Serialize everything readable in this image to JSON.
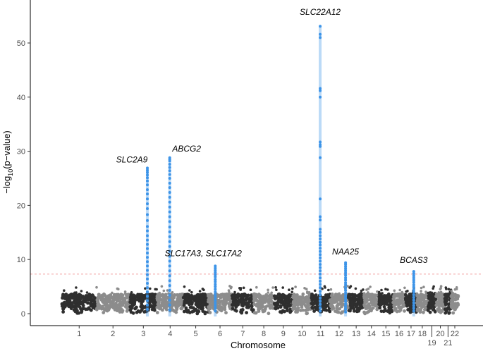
{
  "chart_data": {
    "type": "scatter",
    "subtype": "manhattan",
    "title": "",
    "xlabel": "Chromosome",
    "ylabel": {
      "prefix": "−log",
      "subscript": "10",
      "suffix": "(p−value)"
    },
    "ylim": [
      0,
      55
    ],
    "yticks": [
      0,
      10,
      20,
      30,
      40,
      50
    ],
    "grid": false,
    "significance_threshold": 7.3,
    "colors": {
      "dark": "#2f2f2f",
      "light": "#8c8c8c",
      "highlight": "#3d94e8",
      "threshold": "#f4a3a3"
    },
    "chromosomes": [
      {
        "label": "1",
        "start": 0,
        "end": 248
      },
      {
        "label": "2",
        "start": 248,
        "end": 490
      },
      {
        "label": "3",
        "start": 490,
        "end": 688
      },
      {
        "label": "4",
        "start": 688,
        "end": 878
      },
      {
        "label": "5",
        "start": 878,
        "end": 1059
      },
      {
        "label": "6",
        "start": 1059,
        "end": 1230
      },
      {
        "label": "7",
        "start": 1230,
        "end": 1389
      },
      {
        "label": "8",
        "start": 1389,
        "end": 1534
      },
      {
        "label": "9",
        "start": 1534,
        "end": 1672
      },
      {
        "label": "10",
        "start": 1672,
        "end": 1806
      },
      {
        "label": "11",
        "start": 1806,
        "end": 1941
      },
      {
        "label": "12",
        "start": 1941,
        "end": 2074
      },
      {
        "label": "13",
        "start": 2074,
        "end": 2188
      },
      {
        "label": "14",
        "start": 2188,
        "end": 2295
      },
      {
        "label": "15",
        "start": 2295,
        "end": 2397
      },
      {
        "label": "16",
        "start": 2397,
        "end": 2487
      },
      {
        "label": "17",
        "start": 2487,
        "end": 2570
      },
      {
        "label": "18",
        "start": 2570,
        "end": 2650
      },
      {
        "label": "19",
        "start": 2650,
        "end": 2709
      },
      {
        "label": "20",
        "start": 2709,
        "end": 2773
      },
      {
        "label": "21",
        "start": 2773,
        "end": 2820
      },
      {
        "label": "22",
        "start": 2820,
        "end": 2871
      }
    ],
    "annotations": [
      {
        "gene": "SLC2A9",
        "x": 618,
        "y": 26.9
      },
      {
        "gene": "ABCG2",
        "x": 780,
        "y": 28.8
      },
      {
        "gene": "SLC17A3, SLC17A2",
        "x": 1110,
        "y": 8.8
      },
      {
        "gene": "SLC22A12",
        "x": 1870,
        "y": 53.1
      },
      {
        "gene": "NAA25",
        "x": 2054,
        "y": 9.4
      },
      {
        "gene": "BCAS3",
        "x": 2548,
        "y": 7.8
      }
    ],
    "peaks": [
      {
        "x": 618,
        "y": [
          26.9,
          26.5,
          26.1,
          25.6,
          25.1,
          24.5,
          23.8,
          22.9,
          22.1,
          21.2,
          20.3,
          19.4,
          18.3,
          17.2,
          16.1,
          15.3,
          14.4,
          13.6,
          12.8,
          12.0,
          11.2,
          10.4,
          9.6,
          8.8,
          8.0,
          7.2,
          6.4,
          5.6,
          4.8,
          4.0,
          3.2,
          2.4,
          1.6,
          0.8
        ]
      },
      {
        "x": 780,
        "y": [
          28.8,
          28.5,
          28.2,
          27.6,
          27.0,
          26.4,
          25.7,
          25.0,
          24.1,
          23.3,
          22.4,
          21.5,
          20.6,
          19.7,
          18.8,
          17.9,
          17.0,
          16.0,
          15.1,
          14.2,
          13.3,
          12.4,
          11.5,
          10.6,
          9.7,
          8.8,
          7.9,
          7.0,
          6.1,
          5.2,
          4.3,
          3.4,
          2.5,
          1.6,
          0.7
        ]
      },
      {
        "x": 1110,
        "y": [
          8.8,
          8.4,
          8.0,
          7.6,
          7.2,
          6.8,
          6.3,
          5.9,
          5.4,
          5.0,
          4.5,
          4.0,
          3.5,
          3.0,
          2.5,
          2.0,
          1.5,
          1.0,
          0.5
        ]
      },
      {
        "x": 1870,
        "y": [
          53.1,
          51.6,
          51.0,
          41.6,
          41.2,
          40.0,
          31.7,
          31.2,
          30.9,
          28.8,
          21.2,
          17.9,
          17.3,
          15.6,
          15.0,
          14.4,
          13.8,
          13.2,
          12.7,
          12.1,
          11.5,
          10.9,
          10.3,
          9.7,
          9.1,
          8.5,
          7.9,
          7.3,
          6.6,
          6.0,
          5.4,
          4.8,
          4.1,
          3.5,
          2.9,
          2.3,
          1.7,
          1.1,
          0.5
        ]
      },
      {
        "x": 2054,
        "y": [
          9.4,
          9.1,
          8.7,
          8.3,
          7.9,
          7.5,
          7.1,
          6.6,
          6.2,
          5.7,
          5.3,
          4.8,
          4.3,
          3.8,
          3.3,
          2.8,
          2.3,
          1.8,
          1.3,
          0.8,
          0.3
        ]
      },
      {
        "x": 2548,
        "y": [
          7.8,
          7.4,
          7.0,
          6.6,
          6.2,
          5.8,
          5.3,
          4.9,
          4.4,
          4.0,
          3.5,
          3.0,
          2.5,
          2.0,
          1.5,
          1.0,
          0.5
        ]
      }
    ],
    "background": {
      "points_per_chromosome": 130,
      "max_typical": 4.3,
      "seed": 17
    }
  }
}
